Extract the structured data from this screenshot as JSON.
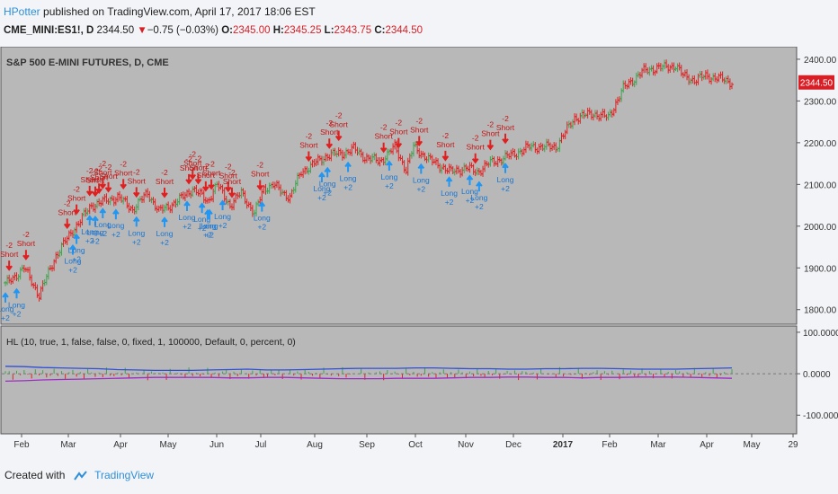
{
  "header": {
    "author": "HPotter",
    "published": "published on TradingView.com, April 17, 2017 18:06 EST",
    "symbol": "CME_MINI:ES1!, D",
    "last": "2344.50",
    "change": "−0.75 (−0.03%)",
    "o_label": "O:",
    "o": "2345.00",
    "h_label": "H:",
    "h": "2345.25",
    "l_label": "L:",
    "l": "2343.75",
    "c_label": "C:",
    "c": "2344.50"
  },
  "footer": {
    "created_with": "Created with",
    "brand": "TradingView"
  },
  "colors": {
    "chart_bg": "#b8b8b8",
    "up": "#3fa34d",
    "down": "#e02020",
    "long_arrow": "#2196f3",
    "short_arrow": "#e02020",
    "hl_line_blue": "#2f4fd8",
    "hl_line_purple": "#a02cc8",
    "zero_line": "#777777"
  },
  "chart_data": [
    {
      "type": "ohlc",
      "title": "S&P 500 E-MINI FUTURES, D, CME",
      "y_ticks": [
        "2400.00",
        "2300.00",
        "2200.00",
        "2100.00",
        "2000.00",
        "1900.00",
        "1800.00"
      ],
      "ylim": [
        1765,
        2430
      ],
      "last_price_label": "2344.50",
      "x_ticks": [
        "Feb",
        "Mar",
        "Apr",
        "May",
        "Jun",
        "Jul",
        "Aug",
        "Sep",
        "Oct",
        "Nov",
        "Dec",
        "2017",
        "Feb",
        "Mar",
        "Apr",
        "May",
        "29"
      ],
      "price_path": [
        [
          0,
          1860
        ],
        [
          10,
          1900
        ],
        [
          18,
          1835
        ],
        [
          27,
          1930
        ],
        [
          36,
          1990
        ],
        [
          46,
          2050
        ],
        [
          60,
          2070
        ],
        [
          68,
          2040
        ],
        [
          76,
          2080
        ],
        [
          82,
          2035
        ],
        [
          92,
          2060
        ],
        [
          100,
          2090
        ],
        [
          108,
          2060
        ],
        [
          113,
          2100
        ],
        [
          120,
          2050
        ],
        [
          126,
          2080
        ],
        [
          133,
          2030
        ],
        [
          138,
          2090
        ],
        [
          143,
          2100
        ],
        [
          148,
          2080
        ],
        [
          152,
          2070
        ],
        [
          158,
          2130
        ],
        [
          165,
          2150
        ],
        [
          172,
          2170
        ],
        [
          180,
          2175
        ],
        [
          186,
          2185
        ],
        [
          192,
          2165
        ],
        [
          200,
          2155
        ],
        [
          208,
          2190
        ],
        [
          214,
          2135
        ],
        [
          218,
          2190
        ],
        [
          226,
          2160
        ],
        [
          230,
          2150
        ],
        [
          238,
          2130
        ],
        [
          246,
          2140
        ],
        [
          252,
          2130
        ],
        [
          258,
          2150
        ],
        [
          264,
          2160
        ],
        [
          270,
          2170
        ],
        [
          280,
          2190
        ],
        [
          294,
          2190
        ],
        [
          304,
          2260
        ],
        [
          314,
          2270
        ],
        [
          322,
          2260
        ],
        [
          330,
          2330
        ],
        [
          340,
          2370
        ],
        [
          348,
          2380
        ],
        [
          352,
          2380
        ],
        [
          358,
          2385
        ],
        [
          362,
          2360
        ],
        [
          368,
          2350
        ],
        [
          374,
          2360
        ],
        [
          380,
          2355
        ],
        [
          388,
          2345
        ]
      ],
      "signal_labels": {
        "long": "Long",
        "short": "Short",
        "qty": "+2",
        "qty_short": "-2"
      },
      "long_signals": [
        0,
        6,
        36,
        38,
        45,
        48,
        52,
        59,
        70,
        85,
        97,
        105,
        108,
        109,
        116,
        137,
        169,
        172,
        183,
        205,
        222,
        237,
        248,
        253,
        267
      ],
      "short_signals": [
        2,
        11,
        33,
        38,
        45,
        48,
        50,
        52,
        55,
        63,
        70,
        85,
        98,
        100,
        103,
        107,
        110,
        119,
        121,
        136,
        162,
        173,
        178,
        202,
        210,
        221,
        235,
        251,
        259,
        267
      ]
    },
    {
      "type": "line",
      "title": "HL (10, true, 1, false, false, 0, fixed, 1, 100000, Default, 0, percent, 0)",
      "y_ticks": [
        "100.0000",
        "0.0000",
        "-100.0000"
      ],
      "ylim": [
        -145,
        115
      ],
      "series": [
        {
          "values": [
            18,
            17,
            15,
            14,
            13,
            12,
            10,
            9,
            8,
            8,
            8,
            9,
            10,
            11,
            9,
            9,
            10,
            11,
            12,
            13,
            13,
            13,
            14,
            14,
            13,
            12,
            12,
            11,
            11,
            12,
            12,
            13,
            13,
            12,
            11,
            11,
            11,
            12,
            13,
            14
          ]
        },
        {
          "values": [
            -18,
            -17,
            -15,
            -14,
            -13,
            -12,
            -11,
            -10,
            -9,
            -9,
            -9,
            -9,
            -10,
            -10,
            -9,
            -9,
            -10,
            -11,
            -12,
            -12,
            -12,
            -11,
            -11,
            -11,
            -10,
            -9,
            -9,
            -8,
            -8,
            -9,
            -9,
            -10,
            -9,
            -9,
            -8,
            -8,
            -8,
            -9,
            -10,
            -11
          ]
        }
      ]
    }
  ]
}
